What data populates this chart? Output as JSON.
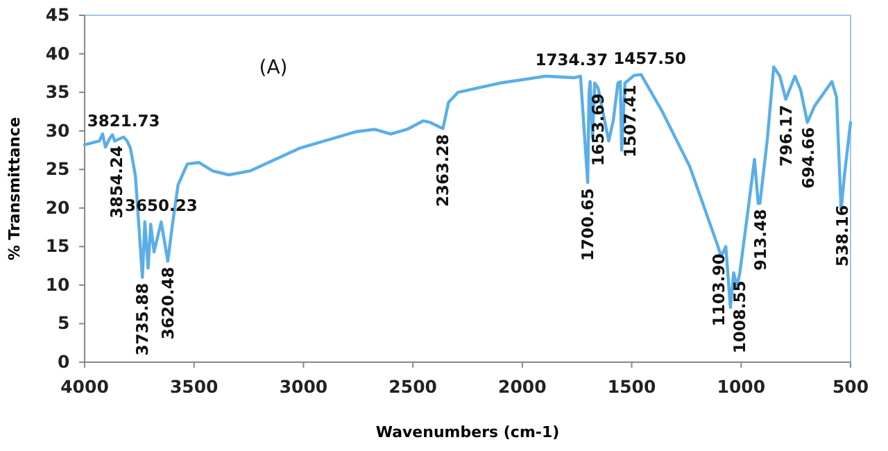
{
  "chart_data": {
    "type": "line",
    "xlabel": "Wavenumbers (cm-1)",
    "ylabel": "% Transmittance",
    "xlim": [
      4000,
      500
    ],
    "xticks": [
      4000,
      3500,
      3000,
      2500,
      2000,
      1500,
      1000,
      500
    ],
    "ylim": [
      0,
      45
    ],
    "yticks": [
      0,
      5,
      10,
      15,
      20,
      25,
      30,
      35,
      40,
      45
    ],
    "marker": "none",
    "line_style": "solid",
    "series": [
      {
        "color": "#5aaee8",
        "x": [
          4000,
          3932,
          3918,
          3905,
          3886,
          3873,
          3863,
          3854,
          3822,
          3806,
          3791,
          3768,
          3736,
          3725,
          3710,
          3698,
          3683,
          3650,
          3620,
          3600,
          3573,
          3531,
          3478,
          3415,
          3341,
          3245,
          3013,
          2759,
          2675,
          2601,
          2527,
          2453,
          2421,
          2363,
          2352,
          2337,
          2294,
          2104,
          1893,
          1764,
          1734,
          1701,
          1695,
          1690,
          1679,
          1669,
          1654,
          1637,
          1605,
          1584,
          1563,
          1552,
          1546,
          1531,
          1489,
          1457,
          1362,
          1235,
          1108,
          1091,
          1070,
          1049,
          1034,
          1019,
          1006,
          970,
          939,
          922,
          914,
          880,
          851,
          823,
          796,
          754,
          728,
          697,
          665,
          585,
          564,
          543,
          528,
          500
        ],
        "values": [
          28.2,
          28.7,
          29.6,
          27.9,
          29,
          29.5,
          28.7,
          28.8,
          29.2,
          28.7,
          27.8,
          24.2,
          11,
          18.2,
          12.2,
          17.9,
          14.3,
          18.2,
          13.1,
          17.6,
          23,
          25.7,
          25.9,
          24.8,
          24.3,
          24.8,
          27.8,
          29.9,
          30.2,
          29.6,
          30.2,
          31.3,
          31.1,
          30.3,
          31.7,
          33.7,
          35,
          36.2,
          37.1,
          36.9,
          37.1,
          23.3,
          35,
          36.4,
          29.1,
          36.2,
          35.6,
          33.2,
          28.7,
          31.4,
          36.2,
          36.4,
          27.5,
          36.2,
          37.2,
          37.3,
          32.6,
          25.4,
          15.2,
          13.7,
          15,
          7.1,
          11.6,
          9.8,
          11.6,
          19.4,
          26.3,
          20.6,
          20.6,
          29,
          38.3,
          37.1,
          34.1,
          37.1,
          35.3,
          31.1,
          33.2,
          36.4,
          34.4,
          19.7,
          24.2,
          31.1
        ]
      }
    ],
    "annotations": [
      "(A)",
      {
        "text": "3821.73",
        "x": 3821.73,
        "y": 29.2
      },
      {
        "text": "3854.24",
        "x": 3854.24,
        "y": 28.8
      },
      {
        "text": "3650.23",
        "x": 3650.23,
        "y": 18.2
      },
      {
        "text": "3735.88",
        "x": 3735.88,
        "y": 11
      },
      {
        "text": "3620.48",
        "x": 3620.48,
        "y": 13.1
      },
      {
        "text": "2363.28",
        "x": 2363.28,
        "y": 30.3
      },
      {
        "text": "1734.37",
        "x": 1734.37,
        "y": 37.1
      },
      {
        "text": "1700.65",
        "x": 1700.65,
        "y": 23.3
      },
      {
        "text": "1653.69",
        "x": 1653.69,
        "y": 35.6
      },
      {
        "text": "1507.41",
        "x": 1507.41,
        "y": 36.7
      },
      {
        "text": "1457.50",
        "x": 1457.5,
        "y": 37.3
      },
      {
        "text": "1103.90",
        "x": 1103.9,
        "y": 14.8
      },
      {
        "text": "1008.55",
        "x": 1008.55,
        "y": 11.3
      },
      {
        "text": "913.48",
        "x": 913.48,
        "y": 20.6
      },
      {
        "text": "796.17",
        "x": 796.17,
        "y": 34.1
      },
      {
        "text": "694.66",
        "x": 694.66,
        "y": 31.2
      },
      {
        "text": "538.16",
        "x": 538.16,
        "y": 21.1
      }
    ]
  }
}
